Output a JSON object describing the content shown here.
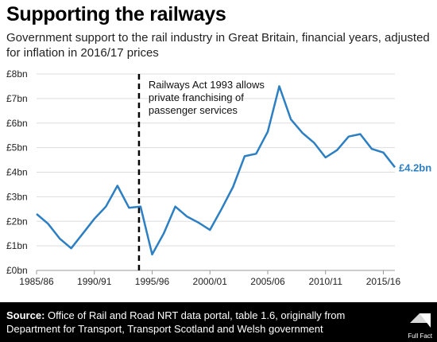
{
  "title": "Supporting the railways",
  "subtitle": "Government support to the rail industry in Great Britain, financial years, adjusted for inflation in 2016/17 prices",
  "footer": {
    "source_label": "Source:",
    "source_text": "Office of Rail and Road NRT data portal, table 1.6, originally from Department for Transport, Transport Scotland and Welsh government",
    "logo_text": "Full Fact"
  },
  "colors": {
    "line": "#2C7FC2",
    "grid": "#dddddd",
    "footer": "#000000"
  },
  "chart_data": {
    "type": "line",
    "title": "Supporting the railways",
    "subtitle": "Government support to the rail industry in Great Britain, financial years, adjusted for inflation in 2016/17 prices",
    "xlabel": "",
    "ylabel": "",
    "ylim": [
      0,
      8
    ],
    "y_ticks": [
      0,
      1,
      2,
      3,
      4,
      5,
      6,
      7,
      8
    ],
    "y_tick_labels": [
      "£0bn",
      "£1bn",
      "£2bn",
      "£3bn",
      "£4bn",
      "£5bn",
      "£6bn",
      "£7bn",
      "£8bn"
    ],
    "x_tick_labels": [
      "1985/86",
      "1990/91",
      "1995/96",
      "2000/01",
      "2005/06",
      "2010/11",
      "2015/16"
    ],
    "x_tick_index": [
      0,
      5,
      10,
      15,
      20,
      25,
      30
    ],
    "x": [
      "1985/86",
      "1986/87",
      "1987/88",
      "1988/89",
      "1989/90",
      "1990/91",
      "1991/92",
      "1992/93",
      "1993/94",
      "1994/95",
      "1995/96",
      "1996/97",
      "1997/98",
      "1998/99",
      "1999/00",
      "2000/01",
      "2001/02",
      "2002/03",
      "2003/04",
      "2004/05",
      "2005/06",
      "2006/07",
      "2007/08",
      "2008/09",
      "2009/10",
      "2010/11",
      "2011/12",
      "2012/13",
      "2013/14",
      "2014/15",
      "2015/16",
      "2016/17"
    ],
    "series": [
      {
        "values": [
          2.3,
          1.9,
          1.3,
          0.9,
          1.5,
          2.1,
          2.6,
          3.45,
          2.55,
          2.6,
          0.65,
          1.5,
          2.6,
          2.2,
          1.95,
          1.65,
          2.5,
          3.4,
          4.65,
          4.75,
          5.65,
          7.5,
          6.15,
          5.6,
          5.2,
          4.6,
          4.9,
          5.45,
          5.55,
          4.95,
          4.8,
          4.2
        ]
      }
    ],
    "end_label": "£4.2bn",
    "annotation": {
      "x": "1994/95",
      "lines": [
        "Railways Act 1993 allows",
        "private franchising of",
        "passenger services"
      ]
    },
    "grid": true,
    "legend": "none"
  }
}
